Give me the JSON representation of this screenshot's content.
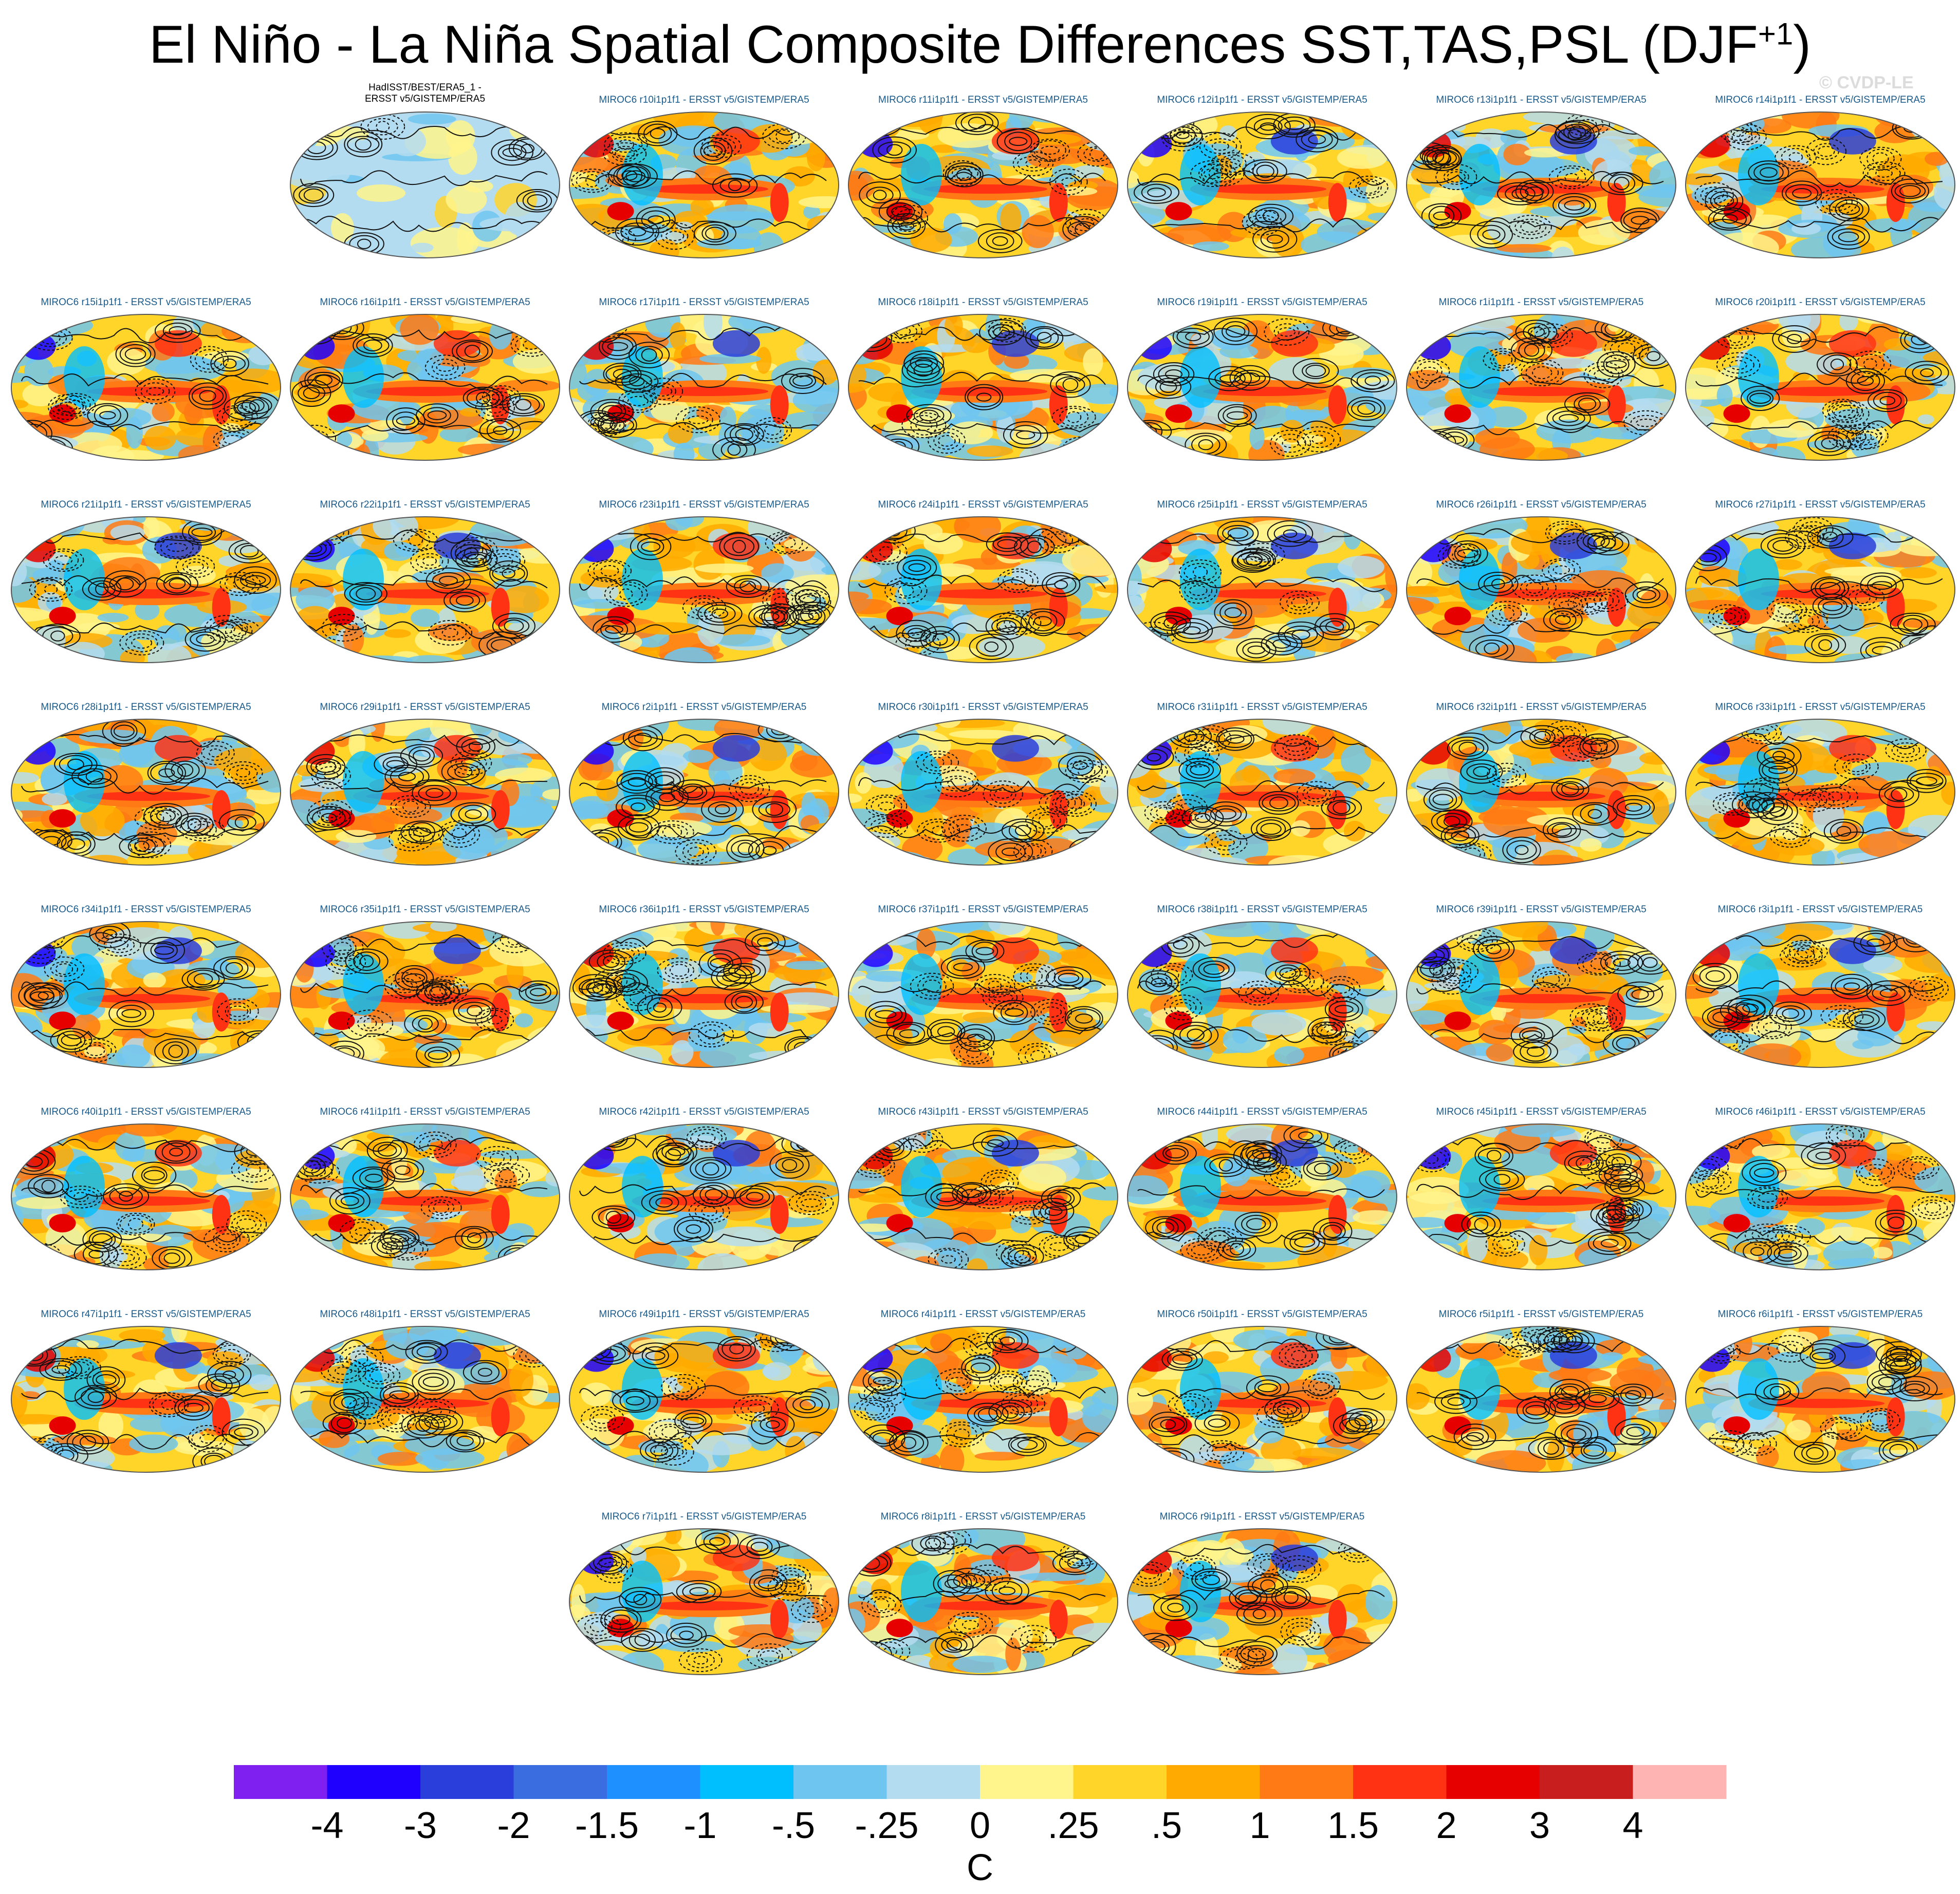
{
  "figure": {
    "title_main": "El Niño - La Niña Spatial Composite Differences SST,TAS,PSL (DJF",
    "title_sup": "+1",
    "title_end": ")",
    "credit": "© CVDP-LE"
  },
  "panel_style": {
    "obs_title_color": "#000000",
    "model_title_color": "#1a5a8a"
  },
  "chart_data": {
    "type": "heatmap",
    "description_kind": "map-panels",
    "units": "C",
    "contour_variable": "PSL",
    "shaded_variables": "SST,TAS",
    "panels": [
      {
        "line1": "HadISST/BEST/ERA5_1 -",
        "line2": "ERSST v5/GISTEMP/ERA5",
        "kind": "obs"
      },
      {
        "line1": "MIROC6 r10i1p1f1 - ERSST v5/GISTEMP/ERA5",
        "kind": "model"
      },
      {
        "line1": "MIROC6 r11i1p1f1 - ERSST v5/GISTEMP/ERA5",
        "kind": "model"
      },
      {
        "line1": "MIROC6 r12i1p1f1 - ERSST v5/GISTEMP/ERA5",
        "kind": "model"
      },
      {
        "line1": "MIROC6 r13i1p1f1 - ERSST v5/GISTEMP/ERA5",
        "kind": "model"
      },
      {
        "line1": "MIROC6 r14i1p1f1 - ERSST v5/GISTEMP/ERA5",
        "kind": "model"
      },
      {
        "line1": "MIROC6 r15i1p1f1 - ERSST v5/GISTEMP/ERA5",
        "kind": "model"
      },
      {
        "line1": "MIROC6 r16i1p1f1 - ERSST v5/GISTEMP/ERA5",
        "kind": "model"
      },
      {
        "line1": "MIROC6 r17i1p1f1 - ERSST v5/GISTEMP/ERA5",
        "kind": "model"
      },
      {
        "line1": "MIROC6 r18i1p1f1 - ERSST v5/GISTEMP/ERA5",
        "kind": "model"
      },
      {
        "line1": "MIROC6 r19i1p1f1 - ERSST v5/GISTEMP/ERA5",
        "kind": "model"
      },
      {
        "line1": "MIROC6 r1i1p1f1 - ERSST v5/GISTEMP/ERA5",
        "kind": "model"
      },
      {
        "line1": "MIROC6 r20i1p1f1 - ERSST v5/GISTEMP/ERA5",
        "kind": "model"
      },
      {
        "line1": "MIROC6 r21i1p1f1 - ERSST v5/GISTEMP/ERA5",
        "kind": "model"
      },
      {
        "line1": "MIROC6 r22i1p1f1 - ERSST v5/GISTEMP/ERA5",
        "kind": "model"
      },
      {
        "line1": "MIROC6 r23i1p1f1 - ERSST v5/GISTEMP/ERA5",
        "kind": "model"
      },
      {
        "line1": "MIROC6 r24i1p1f1 - ERSST v5/GISTEMP/ERA5",
        "kind": "model"
      },
      {
        "line1": "MIROC6 r25i1p1f1 - ERSST v5/GISTEMP/ERA5",
        "kind": "model"
      },
      {
        "line1": "MIROC6 r26i1p1f1 - ERSST v5/GISTEMP/ERA5",
        "kind": "model"
      },
      {
        "line1": "MIROC6 r27i1p1f1 - ERSST v5/GISTEMP/ERA5",
        "kind": "model"
      },
      {
        "line1": "MIROC6 r28i1p1f1 - ERSST v5/GISTEMP/ERA5",
        "kind": "model"
      },
      {
        "line1": "MIROC6 r29i1p1f1 - ERSST v5/GISTEMP/ERA5",
        "kind": "model"
      },
      {
        "line1": "MIROC6 r2i1p1f1 - ERSST v5/GISTEMP/ERA5",
        "kind": "model"
      },
      {
        "line1": "MIROC6 r30i1p1f1 - ERSST v5/GISTEMP/ERA5",
        "kind": "model"
      },
      {
        "line1": "MIROC6 r31i1p1f1 - ERSST v5/GISTEMP/ERA5",
        "kind": "model"
      },
      {
        "line1": "MIROC6 r32i1p1f1 - ERSST v5/GISTEMP/ERA5",
        "kind": "model"
      },
      {
        "line1": "MIROC6 r33i1p1f1 - ERSST v5/GISTEMP/ERA5",
        "kind": "model"
      },
      {
        "line1": "MIROC6 r34i1p1f1 - ERSST v5/GISTEMP/ERA5",
        "kind": "model"
      },
      {
        "line1": "MIROC6 r35i1p1f1 - ERSST v5/GISTEMP/ERA5",
        "kind": "model"
      },
      {
        "line1": "MIROC6 r36i1p1f1 - ERSST v5/GISTEMP/ERA5",
        "kind": "model"
      },
      {
        "line1": "MIROC6 r37i1p1f1 - ERSST v5/GISTEMP/ERA5",
        "kind": "model"
      },
      {
        "line1": "MIROC6 r38i1p1f1 - ERSST v5/GISTEMP/ERA5",
        "kind": "model"
      },
      {
        "line1": "MIROC6 r39i1p1f1 - ERSST v5/GISTEMP/ERA5",
        "kind": "model"
      },
      {
        "line1": "MIROC6 r3i1p1f1 - ERSST v5/GISTEMP/ERA5",
        "kind": "model"
      },
      {
        "line1": "MIROC6 r40i1p1f1 - ERSST v5/GISTEMP/ERA5",
        "kind": "model"
      },
      {
        "line1": "MIROC6 r41i1p1f1 - ERSST v5/GISTEMP/ERA5",
        "kind": "model"
      },
      {
        "line1": "MIROC6 r42i1p1f1 - ERSST v5/GISTEMP/ERA5",
        "kind": "model"
      },
      {
        "line1": "MIROC6 r43i1p1f1 - ERSST v5/GISTEMP/ERA5",
        "kind": "model"
      },
      {
        "line1": "MIROC6 r44i1p1f1 - ERSST v5/GISTEMP/ERA5",
        "kind": "model"
      },
      {
        "line1": "MIROC6 r45i1p1f1 - ERSST v5/GISTEMP/ERA5",
        "kind": "model"
      },
      {
        "line1": "MIROC6 r46i1p1f1 - ERSST v5/GISTEMP/ERA5",
        "kind": "model"
      },
      {
        "line1": "MIROC6 r47i1p1f1 - ERSST v5/GISTEMP/ERA5",
        "kind": "model"
      },
      {
        "line1": "MIROC6 r48i1p1f1 - ERSST v5/GISTEMP/ERA5",
        "kind": "model"
      },
      {
        "line1": "MIROC6 r49i1p1f1 - ERSST v5/GISTEMP/ERA5",
        "kind": "model"
      },
      {
        "line1": "MIROC6 r4i1p1f1 - ERSST v5/GISTEMP/ERA5",
        "kind": "model"
      },
      {
        "line1": "MIROC6 r50i1p1f1 - ERSST v5/GISTEMP/ERA5",
        "kind": "model"
      },
      {
        "line1": "MIROC6 r5i1p1f1 - ERSST v5/GISTEMP/ERA5",
        "kind": "model"
      },
      {
        "line1": "MIROC6 r6i1p1f1 - ERSST v5/GISTEMP/ERA5",
        "kind": "model"
      },
      {
        "line1": "MIROC6 r7i1p1f1 - ERSST v5/GISTEMP/ERA5",
        "kind": "model"
      },
      {
        "line1": "MIROC6 r8i1p1f1 - ERSST v5/GISTEMP/ERA5",
        "kind": "model"
      },
      {
        "line1": "MIROC6 r9i1p1f1 - ERSST v5/GISTEMP/ERA5",
        "kind": "model"
      }
    ],
    "colorbar": {
      "label": "C",
      "tick_labels": [
        "-4",
        "-3",
        "-2",
        "-1.5",
        "-1",
        "-.5",
        "-.25",
        "0",
        ".25",
        ".5",
        "1",
        "1.5",
        "2",
        "3",
        "4"
      ],
      "colors": [
        "#7f1ff0",
        "#1f00ff",
        "#2a3edb",
        "#3a6ee0",
        "#1e90ff",
        "#00bfff",
        "#6ec6f0",
        "#b4dcf0",
        "#fff58c",
        "#ffd52a",
        "#ffaa00",
        "#ff7a14",
        "#ff3214",
        "#e60000",
        "#c81e1e",
        "#ffb4b4"
      ]
    }
  }
}
